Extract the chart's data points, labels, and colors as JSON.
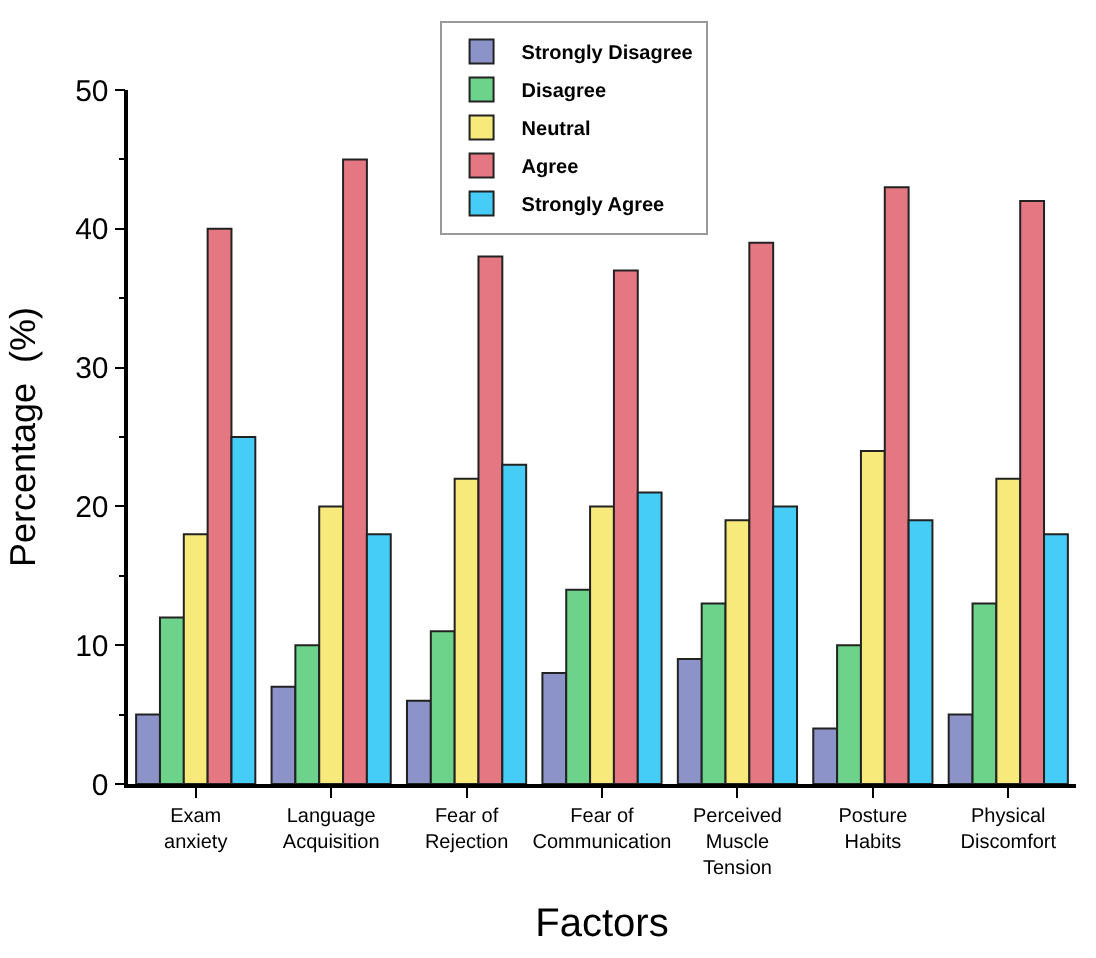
{
  "chart_data": {
    "type": "bar",
    "xlabel": "Factors",
    "ylabel": "Percentage  (%)",
    "categories": [
      "Exam\nanxiety",
      "Language\nAcquisition",
      "Fear of\nRejection",
      "Fear of\nCommunication",
      "Perceived\nMuscle\nTension",
      "Posture\nHabits",
      "Physical\nDiscomfort"
    ],
    "series": [
      {
        "name": "Strongly Disagree",
        "color": "#8c93c8",
        "values": [
          5,
          7,
          6,
          8,
          9,
          4,
          5
        ]
      },
      {
        "name": "Disagree",
        "color": "#6dd38a",
        "values": [
          12,
          10,
          11,
          14,
          13,
          10,
          13
        ]
      },
      {
        "name": "Neutral",
        "color": "#f8ea7a",
        "values": [
          18,
          20,
          22,
          20,
          19,
          24,
          22
        ]
      },
      {
        "name": "Agree",
        "color": "#e57782",
        "values": [
          40,
          45,
          38,
          37,
          39,
          43,
          42
        ]
      },
      {
        "name": "Strongly Agree",
        "color": "#45cdf7",
        "values": [
          25,
          18,
          23,
          21,
          20,
          19,
          18
        ]
      }
    ],
    "ylim": [
      0,
      50
    ],
    "yticks": [
      0,
      10,
      20,
      30,
      40,
      50
    ],
    "legend": "top"
  }
}
